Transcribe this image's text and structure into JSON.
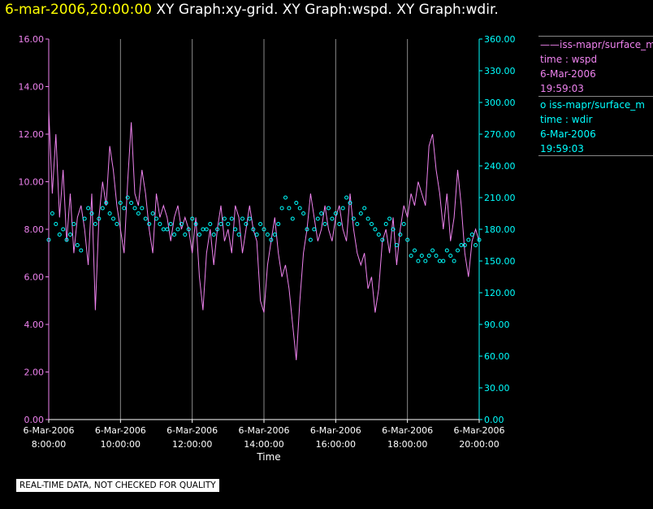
{
  "header": {
    "timestamp": "6-mar-2006,20:00:00",
    "titles": "XY Graph:xy-grid.  XY Graph:wspd.  XY Graph:wdir."
  },
  "footer_note": "REAL-TIME DATA, NOT CHECKED FOR QUALITY",
  "legend": {
    "s1": {
      "line1": "iss-mapr/surface_m",
      "line2": "time : wspd",
      "line3": "6-Mar-2006",
      "line4": "19:59:03",
      "color": "#ee82ee"
    },
    "s2": {
      "line1": "iss-mapr/surface_m",
      "line2": "time : wdir",
      "line3": "6-Mar-2006",
      "line4": "19:59:03",
      "color": "#00ffff"
    }
  },
  "chart_data": {
    "type": "line",
    "xlabel": "Time",
    "xlim": [
      8.0,
      20.0
    ],
    "x_ticks": [
      {
        "date": "6-Mar-2006",
        "time": "8:00:00",
        "value": 8
      },
      {
        "date": "6-Mar-2006",
        "time": "10:00:00",
        "value": 10
      },
      {
        "date": "6-Mar-2006",
        "time": "12:00:00",
        "value": 12
      },
      {
        "date": "6-Mar-2006",
        "time": "14:00:00",
        "value": 14
      },
      {
        "date": "6-Mar-2006",
        "time": "16:00:00",
        "value": 16
      },
      {
        "date": "6-Mar-2006",
        "time": "18:00:00",
        "value": 18
      },
      {
        "date": "6-Mar-2006",
        "time": "20:00:00",
        "value": 20
      }
    ],
    "y_left": {
      "ticks": [
        "0.00",
        "2.00",
        "4.00",
        "6.00",
        "8.00",
        "10.00",
        "12.00",
        "14.00",
        "16.00"
      ],
      "ylim": [
        0,
        16
      ],
      "color": "#ee82ee"
    },
    "y_right": {
      "ticks": [
        "0.00",
        "30.00",
        "60.00",
        "90.00",
        "120.00",
        "150.00",
        "180.00",
        "210.00",
        "240.00",
        "270.00",
        "300.00",
        "330.00",
        "360.00"
      ],
      "ylim": [
        0,
        360
      ],
      "color": "#00ffff"
    },
    "grid": "vertical",
    "series": [
      {
        "name": "time : wspd",
        "axis": "left",
        "style": "line",
        "color": "#ee82ee",
        "x": [
          8.0,
          8.1,
          8.2,
          8.3,
          8.4,
          8.5,
          8.6,
          8.7,
          8.8,
          8.9,
          9.0,
          9.1,
          9.2,
          9.3,
          9.4,
          9.5,
          9.6,
          9.7,
          9.8,
          9.9,
          10.0,
          10.1,
          10.2,
          10.3,
          10.4,
          10.5,
          10.6,
          10.7,
          10.8,
          10.9,
          11.0,
          11.1,
          11.2,
          11.3,
          11.4,
          11.5,
          11.6,
          11.7,
          11.8,
          11.9,
          12.0,
          12.1,
          12.2,
          12.3,
          12.4,
          12.5,
          12.6,
          12.7,
          12.8,
          12.9,
          13.0,
          13.1,
          13.2,
          13.3,
          13.4,
          13.5,
          13.6,
          13.7,
          13.8,
          13.9,
          14.0,
          14.1,
          14.2,
          14.3,
          14.4,
          14.5,
          14.6,
          14.7,
          14.8,
          14.9,
          15.0,
          15.1,
          15.2,
          15.3,
          15.4,
          15.5,
          15.6,
          15.7,
          15.8,
          15.9,
          16.0,
          16.1,
          16.2,
          16.3,
          16.4,
          16.5,
          16.6,
          16.7,
          16.8,
          16.9,
          17.0,
          17.1,
          17.2,
          17.3,
          17.4,
          17.5,
          17.6,
          17.7,
          17.8,
          17.9,
          18.0,
          18.1,
          18.2,
          18.3,
          18.4,
          18.5,
          18.6,
          18.7,
          18.8,
          18.9,
          19.0,
          19.1,
          19.2,
          19.3,
          19.4,
          19.5,
          19.6,
          19.7,
          19.8,
          19.9,
          20.0
        ],
        "y": [
          13.0,
          9.5,
          12.0,
          8.5,
          10.5,
          7.5,
          9.5,
          7.0,
          8.5,
          9.0,
          8.0,
          6.5,
          9.5,
          4.6,
          8.5,
          10.0,
          9.0,
          11.5,
          10.5,
          9.0,
          8.0,
          7.0,
          10.0,
          12.5,
          9.5,
          9.0,
          10.5,
          9.5,
          8.0,
          7.0,
          9.5,
          8.5,
          9.0,
          8.5,
          7.5,
          8.5,
          9.0,
          8.0,
          8.5,
          8.0,
          7.0,
          8.5,
          6.0,
          4.6,
          7.0,
          8.0,
          6.5,
          8.0,
          9.0,
          7.5,
          8.0,
          7.0,
          9.0,
          8.5,
          7.0,
          8.0,
          9.0,
          8.0,
          7.5,
          5.0,
          4.5,
          6.5,
          7.5,
          8.5,
          7.0,
          6.0,
          6.5,
          5.5,
          4.0,
          2.5,
          5.0,
          7.0,
          8.0,
          9.5,
          8.5,
          7.5,
          8.0,
          9.0,
          8.0,
          7.5,
          8.5,
          9.0,
          8.0,
          7.5,
          9.5,
          8.0,
          7.0,
          6.5,
          7.0,
          5.5,
          6.0,
          4.5,
          5.5,
          7.5,
          8.0,
          7.0,
          8.5,
          6.5,
          8.0,
          9.0,
          8.5,
          9.5,
          9.0,
          10.0,
          9.5,
          9.0,
          11.5,
          12.0,
          10.5,
          9.5,
          8.0,
          9.5,
          7.5,
          8.5,
          10.5,
          9.0,
          7.0,
          6.0,
          7.5,
          8.0,
          7.5
        ]
      },
      {
        "name": "time : wdir",
        "axis": "right",
        "style": "points",
        "color": "#00ffff",
        "x": [
          8.0,
          8.1,
          8.2,
          8.3,
          8.4,
          8.5,
          8.6,
          8.7,
          8.8,
          8.9,
          9.0,
          9.1,
          9.2,
          9.3,
          9.4,
          9.5,
          9.6,
          9.7,
          9.8,
          9.9,
          10.0,
          10.1,
          10.2,
          10.3,
          10.4,
          10.5,
          10.6,
          10.7,
          10.8,
          10.9,
          11.0,
          11.1,
          11.2,
          11.3,
          11.4,
          11.5,
          11.6,
          11.7,
          11.8,
          11.9,
          12.0,
          12.1,
          12.2,
          12.3,
          12.4,
          12.5,
          12.6,
          12.7,
          12.8,
          12.9,
          13.0,
          13.1,
          13.2,
          13.3,
          13.4,
          13.5,
          13.6,
          13.7,
          13.8,
          13.9,
          14.0,
          14.1,
          14.2,
          14.3,
          14.4,
          14.5,
          14.6,
          14.7,
          14.8,
          14.9,
          15.0,
          15.1,
          15.2,
          15.3,
          15.4,
          15.5,
          15.6,
          15.7,
          15.8,
          15.9,
          16.0,
          16.1,
          16.2,
          16.3,
          16.4,
          16.5,
          16.6,
          16.7,
          16.8,
          16.9,
          17.0,
          17.1,
          17.2,
          17.3,
          17.4,
          17.5,
          17.6,
          17.7,
          17.8,
          17.9,
          18.0,
          18.1,
          18.2,
          18.3,
          18.4,
          18.5,
          18.6,
          18.7,
          18.8,
          18.9,
          19.0,
          19.1,
          19.2,
          19.3,
          19.4,
          19.5,
          19.6,
          19.7,
          19.8,
          19.9,
          20.0
        ],
        "y": [
          170,
          195,
          185,
          175,
          180,
          170,
          175,
          185,
          165,
          160,
          190,
          200,
          195,
          185,
          190,
          200,
          205,
          195,
          190,
          185,
          205,
          200,
          210,
          205,
          200,
          195,
          200,
          190,
          185,
          195,
          190,
          185,
          180,
          180,
          185,
          175,
          180,
          185,
          175,
          180,
          190,
          185,
          175,
          180,
          180,
          185,
          175,
          180,
          185,
          190,
          185,
          190,
          180,
          175,
          190,
          185,
          190,
          180,
          175,
          185,
          180,
          175,
          170,
          175,
          185,
          200,
          210,
          200,
          190,
          205,
          200,
          195,
          180,
          170,
          180,
          190,
          195,
          185,
          200,
          190,
          195,
          185,
          200,
          210,
          205,
          190,
          185,
          195,
          200,
          190,
          185,
          180,
          175,
          170,
          185,
          190,
          180,
          165,
          175,
          185,
          170,
          155,
          160,
          150,
          155,
          150,
          155,
          160,
          155,
          150,
          150,
          160,
          155,
          150,
          160,
          165,
          165,
          170,
          175,
          165,
          170
        ]
      }
    ]
  }
}
